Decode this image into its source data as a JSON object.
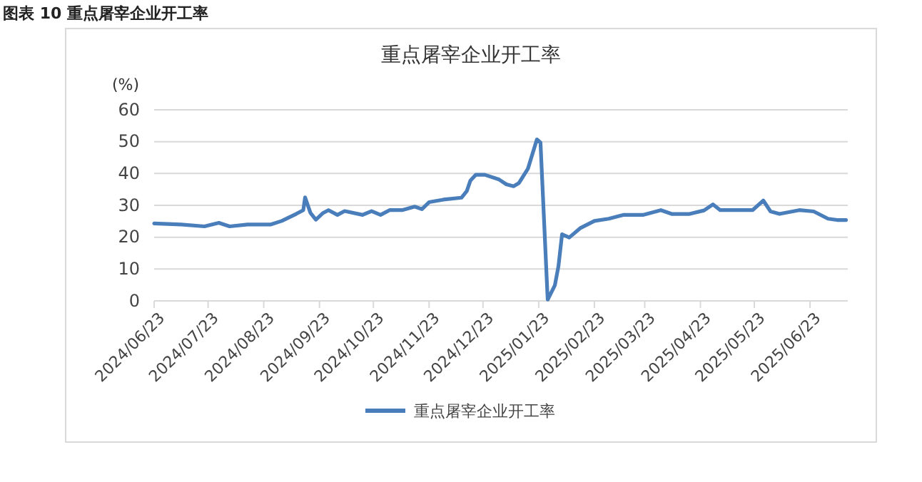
{
  "chart_data": {
    "type": "line",
    "title": "重点屠宰企业开工率",
    "ylabel": "(%)",
    "annotations": [
      "图表 10  重点屠宰企业开工率"
    ],
    "x": [
      "2024-06-23",
      "2024-07-08",
      "2024-07-21",
      "2024-07-29",
      "2024-08-04",
      "2024-08-14",
      "2024-08-27",
      "2024-09-02",
      "2024-09-10",
      "2024-09-14",
      "2024-09-15",
      "2024-09-18",
      "2024-09-21",
      "2024-09-25",
      "2024-09-28",
      "2024-10-03",
      "2024-10-07",
      "2024-10-17",
      "2024-10-22",
      "2024-10-27",
      "2024-11-01",
      "2024-11-08",
      "2024-11-15",
      "2024-11-19",
      "2024-11-23",
      "2024-12-01",
      "2024-12-11",
      "2024-12-14",
      "2024-12-16",
      "2024-12-19",
      "2024-12-24",
      "2025-01-01",
      "2025-01-05",
      "2025-01-09",
      "2025-01-12",
      "2025-01-17",
      "2025-01-22",
      "2025-01-24",
      "2025-01-28",
      "2025-02-01",
      "2025-02-03",
      "2025-02-05",
      "2025-02-09",
      "2025-02-15",
      "2025-02-23",
      "2025-03-03",
      "2025-03-11",
      "2025-03-22",
      "2025-04-01",
      "2025-04-07",
      "2025-04-17",
      "2025-04-25",
      "2025-04-30",
      "2025-05-04",
      "2025-05-14",
      "2025-05-22",
      "2025-05-28",
      "2025-06-01",
      "2025-06-06",
      "2025-06-17",
      "2025-06-25",
      "2025-07-03",
      "2025-07-08",
      "2025-07-13"
    ],
    "series": [
      {
        "name": "重点屠宰企业开工率",
        "color": "#4a7ebb",
        "values": [
          24.3,
          24.0,
          23.4,
          24.5,
          23.4,
          24.0,
          24.0,
          25.1,
          27.3,
          28.5,
          32.5,
          27.6,
          25.5,
          27.6,
          28.5,
          27.0,
          28.2,
          27.0,
          28.2,
          27.0,
          28.5,
          28.5,
          29.6,
          28.8,
          31.0,
          31.8,
          32.4,
          34.5,
          37.8,
          39.6,
          39.6,
          38.1,
          36.6,
          36.0,
          37.0,
          41.5,
          50.7,
          49.7,
          0.4,
          4.9,
          10.9,
          20.9,
          19.9,
          22.8,
          25.1,
          25.8,
          27.0,
          27.0,
          28.5,
          27.3,
          27.3,
          28.4,
          30.3,
          28.5,
          28.5,
          28.5,
          31.5,
          28.1,
          27.3,
          28.5,
          28.1,
          25.8,
          25.4,
          25.4
        ]
      }
    ],
    "xlim": [
      "2024-06-23",
      "2025-07-14"
    ],
    "xticks": [
      {
        "value": "2024-06-23",
        "label": "2024/06/23"
      },
      {
        "value": "2024-07-23",
        "label": "2024/07/23"
      },
      {
        "value": "2024-08-23",
        "label": "2024/08/23"
      },
      {
        "value": "2024-09-23",
        "label": "2024/09/23"
      },
      {
        "value": "2024-10-23",
        "label": "2024/10/23"
      },
      {
        "value": "2024-11-23",
        "label": "2024/11/23"
      },
      {
        "value": "2024-12-23",
        "label": "2024/12/23"
      },
      {
        "value": "2025-01-23",
        "label": "2025/01/23"
      },
      {
        "value": "2025-02-23",
        "label": "2025/02/23"
      },
      {
        "value": "2025-03-23",
        "label": "2025/03/23"
      },
      {
        "value": "2025-04-23",
        "label": "2025/04/23"
      },
      {
        "value": "2025-05-23",
        "label": "2025/05/23"
      },
      {
        "value": "2025-06-23",
        "label": "2025/06/23"
      }
    ],
    "ylim": [
      0,
      60
    ],
    "yticks": [
      0,
      10,
      20,
      30,
      40,
      50,
      60
    ],
    "grid": "y",
    "legend": "bottom",
    "marker": "none",
    "line_style": "solid"
  }
}
